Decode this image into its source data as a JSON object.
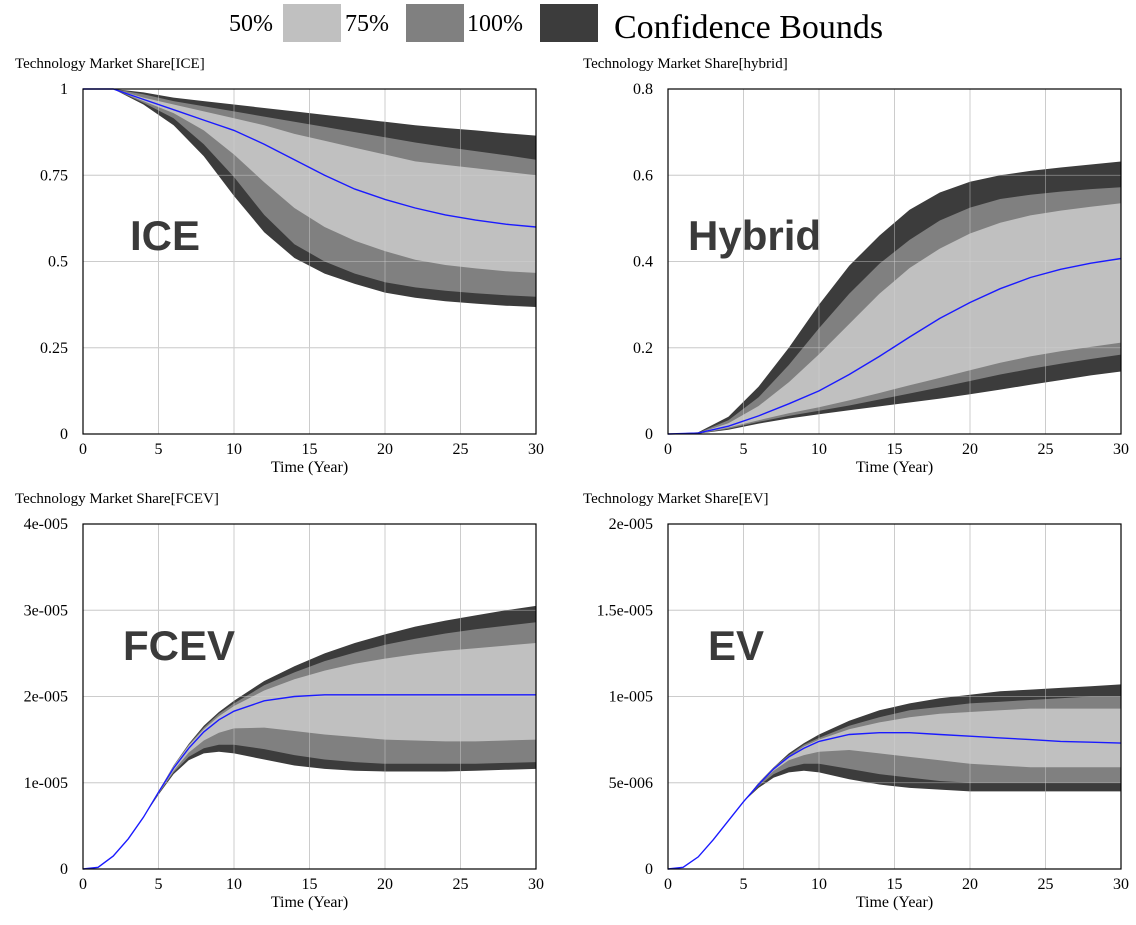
{
  "legend": {
    "title": "Confidence Bounds",
    "items": [
      {
        "label": "50%",
        "color": "#c0c0c0"
      },
      {
        "label": "75%",
        "color": "#808080"
      },
      {
        "label": "100%",
        "color": "#3c3c3c"
      }
    ],
    "median_color": "#1a1aff"
  },
  "chart_data": [
    {
      "type": "area",
      "title": "Technology Market Share[ICE]",
      "annotation": "ICE",
      "xlabel": "Time (Year)",
      "xlim": [
        0,
        30
      ],
      "ylim": [
        0,
        1
      ],
      "x_ticks": [
        "0",
        "5",
        "10",
        "15",
        "20",
        "25",
        "30"
      ],
      "y_ticks": [
        "0",
        "0.25",
        "0.5",
        "0.75",
        "1"
      ],
      "x": [
        0,
        2,
        4,
        6,
        8,
        10,
        12,
        14,
        16,
        18,
        20,
        22,
        24,
        26,
        28,
        30
      ],
      "bands": {
        "b100_upper": [
          1,
          1,
          0.99,
          0.975,
          0.965,
          0.955,
          0.945,
          0.935,
          0.925,
          0.915,
          0.905,
          0.895,
          0.887,
          0.88,
          0.872,
          0.865
        ],
        "b75_upper": [
          1,
          1,
          0.985,
          0.965,
          0.95,
          0.935,
          0.92,
          0.905,
          0.89,
          0.875,
          0.86,
          0.845,
          0.832,
          0.82,
          0.808,
          0.795
        ],
        "b50_upper": [
          1,
          1,
          0.975,
          0.955,
          0.935,
          0.915,
          0.895,
          0.87,
          0.85,
          0.83,
          0.81,
          0.79,
          0.78,
          0.77,
          0.76,
          0.75
        ],
        "median": [
          1,
          1,
          0.97,
          0.94,
          0.91,
          0.88,
          0.84,
          0.795,
          0.75,
          0.71,
          0.68,
          0.655,
          0.635,
          0.62,
          0.608,
          0.6
        ],
        "b50_lower": [
          1,
          1,
          0.965,
          0.93,
          0.88,
          0.81,
          0.73,
          0.655,
          0.6,
          0.56,
          0.53,
          0.505,
          0.49,
          0.48,
          0.472,
          0.467
        ],
        "b75_lower": [
          1,
          1,
          0.96,
          0.915,
          0.84,
          0.745,
          0.635,
          0.55,
          0.5,
          0.465,
          0.44,
          0.425,
          0.415,
          0.408,
          0.402,
          0.398
        ],
        "b100_lower": [
          1,
          1,
          0.955,
          0.895,
          0.805,
          0.69,
          0.585,
          0.51,
          0.465,
          0.435,
          0.41,
          0.395,
          0.385,
          0.378,
          0.372,
          0.368
        ]
      }
    },
    {
      "type": "area",
      "title": "Technology Market Share[hybrid]",
      "annotation": "Hybrid",
      "xlabel": "Time (Year)",
      "xlim": [
        0,
        30
      ],
      "ylim": [
        0,
        0.8
      ],
      "x_ticks": [
        "0",
        "5",
        "10",
        "15",
        "20",
        "25",
        "30"
      ],
      "y_ticks": [
        "0",
        "0.2",
        "0.4",
        "0.6",
        "0.8"
      ],
      "x": [
        0,
        2,
        4,
        6,
        8,
        10,
        12,
        14,
        16,
        18,
        20,
        22,
        24,
        26,
        28,
        30
      ],
      "bands": {
        "b100_upper": [
          0,
          0.004,
          0.04,
          0.11,
          0.2,
          0.3,
          0.39,
          0.46,
          0.52,
          0.56,
          0.585,
          0.6,
          0.61,
          0.618,
          0.625,
          0.632
        ],
        "b75_upper": [
          0,
          0.003,
          0.032,
          0.085,
          0.16,
          0.245,
          0.325,
          0.395,
          0.45,
          0.495,
          0.525,
          0.545,
          0.555,
          0.562,
          0.568,
          0.572
        ],
        "b50_upper": [
          0,
          0.002,
          0.025,
          0.065,
          0.12,
          0.185,
          0.255,
          0.325,
          0.385,
          0.43,
          0.465,
          0.49,
          0.507,
          0.518,
          0.527,
          0.535
        ],
        "median": [
          0,
          0.002,
          0.018,
          0.042,
          0.07,
          0.1,
          0.138,
          0.18,
          0.225,
          0.268,
          0.305,
          0.337,
          0.363,
          0.382,
          0.396,
          0.407
        ],
        "b50_lower": [
          0,
          0.001,
          0.015,
          0.032,
          0.048,
          0.062,
          0.078,
          0.095,
          0.113,
          0.13,
          0.148,
          0.165,
          0.18,
          0.192,
          0.202,
          0.212
        ],
        "b75_lower": [
          0,
          0.001,
          0.012,
          0.028,
          0.042,
          0.054,
          0.066,
          0.08,
          0.094,
          0.108,
          0.123,
          0.138,
          0.151,
          0.163,
          0.174,
          0.184
        ],
        "b100_lower": [
          0,
          0.001,
          0.01,
          0.024,
          0.036,
          0.046,
          0.055,
          0.064,
          0.073,
          0.082,
          0.092,
          0.103,
          0.114,
          0.125,
          0.136,
          0.145
        ]
      }
    },
    {
      "type": "area",
      "title": "Technology Market Share[FCEV]",
      "annotation": "FCEV",
      "xlabel": "Time (Year)",
      "xlim": [
        0,
        30
      ],
      "ylim": [
        0,
        4e-05
      ],
      "x_ticks": [
        "0",
        "5",
        "10",
        "15",
        "20",
        "25",
        "30"
      ],
      "y_ticks": [
        "0",
        "1e-005",
        "2e-005",
        "3e-005",
        "4e-005"
      ],
      "x": [
        0,
        1,
        2,
        3,
        4,
        5,
        6,
        7,
        8,
        9,
        10,
        12,
        14,
        16,
        18,
        20,
        22,
        24,
        26,
        28,
        30
      ],
      "bands": {
        "b100_upper": [
          0,
          2e-07,
          1.5e-06,
          3.5e-06,
          6e-06,
          9e-06,
          1.2e-05,
          1.45e-05,
          1.66e-05,
          1.82e-05,
          1.95e-05,
          2.18e-05,
          2.35e-05,
          2.5e-05,
          2.62e-05,
          2.72e-05,
          2.81e-05,
          2.88e-05,
          2.94e-05,
          3e-05,
          3.05e-05
        ],
        "b75_upper": [
          0,
          2e-07,
          1.5e-06,
          3.5e-06,
          6e-06,
          9e-06,
          1.2e-05,
          1.44e-05,
          1.64e-05,
          1.8e-05,
          1.92e-05,
          2.13e-05,
          2.28e-05,
          2.41e-05,
          2.51e-05,
          2.6e-05,
          2.67e-05,
          2.73e-05,
          2.78e-05,
          2.82e-05,
          2.86e-05
        ],
        "b50_upper": [
          0,
          2e-07,
          1.5e-06,
          3.5e-06,
          6e-06,
          9e-06,
          1.19e-05,
          1.43e-05,
          1.62e-05,
          1.77e-05,
          1.89e-05,
          2.07e-05,
          2.2e-05,
          2.3e-05,
          2.38e-05,
          2.44e-05,
          2.49e-05,
          2.53e-05,
          2.56e-05,
          2.59e-05,
          2.62e-05
        ],
        "median": [
          0,
          2e-07,
          1.5e-06,
          3.5e-06,
          6e-06,
          8.9e-06,
          1.17e-05,
          1.4e-05,
          1.59e-05,
          1.73e-05,
          1.83e-05,
          1.95e-05,
          2e-05,
          2.02e-05,
          2.02e-05,
          2.02e-05,
          2.02e-05,
          2.02e-05,
          2.02e-05,
          2.02e-05,
          2.02e-05
        ],
        "b50_lower": [
          0,
          2e-07,
          1.5e-06,
          3.5e-06,
          6e-06,
          8.8e-06,
          1.14e-05,
          1.35e-05,
          1.49e-05,
          1.58e-05,
          1.63e-05,
          1.64e-05,
          1.6e-05,
          1.56e-05,
          1.53e-05,
          1.5e-05,
          1.49e-05,
          1.48e-05,
          1.48e-05,
          1.49e-05,
          1.5e-05
        ],
        "b75_lower": [
          0,
          2e-07,
          1.5e-06,
          3.5e-06,
          6e-06,
          8.7e-06,
          1.12e-05,
          1.3e-05,
          1.4e-05,
          1.44e-05,
          1.44e-05,
          1.39e-05,
          1.32e-05,
          1.27e-05,
          1.24e-05,
          1.22e-05,
          1.22e-05,
          1.22e-05,
          1.22e-05,
          1.23e-05,
          1.24e-05
        ],
        "b100_lower": [
          0,
          2e-07,
          1.5e-06,
          3.5e-06,
          6e-06,
          8.6e-06,
          1.1e-05,
          1.26e-05,
          1.34e-05,
          1.36e-05,
          1.34e-05,
          1.27e-05,
          1.2e-05,
          1.16e-05,
          1.14e-05,
          1.13e-05,
          1.13e-05,
          1.13e-05,
          1.14e-05,
          1.15e-05,
          1.16e-05
        ]
      }
    },
    {
      "type": "area",
      "title": "Technology Market Share[EV]",
      "annotation": "EV",
      "xlabel": "Time (Year)",
      "xlim": [
        0,
        30
      ],
      "ylim": [
        0,
        2e-05
      ],
      "x_ticks": [
        "0",
        "5",
        "10",
        "15",
        "20",
        "25",
        "30"
      ],
      "y_ticks": [
        "0",
        "5e-006",
        "1e-005",
        "1.5e-005",
        "2e-005"
      ],
      "x": [
        0,
        1,
        2,
        3,
        4,
        5,
        6,
        7,
        8,
        9,
        10,
        12,
        14,
        16,
        18,
        20,
        22,
        24,
        26,
        28,
        30
      ],
      "bands": {
        "b100_upper": [
          0,
          1e-07,
          7e-07,
          1.7e-06,
          2.8e-06,
          3.9e-06,
          5e-06,
          5.9e-06,
          6.7e-06,
          7.3e-06,
          7.8e-06,
          8.6e-06,
          9.2e-06,
          9.6e-06,
          9.9e-06,
          1.01e-05,
          1.03e-05,
          1.04e-05,
          1.05e-05,
          1.06e-05,
          1.07e-05
        ],
        "b75_upper": [
          0,
          1e-07,
          7e-07,
          1.7e-06,
          2.8e-06,
          3.9e-06,
          5e-06,
          5.9e-06,
          6.6e-06,
          7.2e-06,
          7.6e-06,
          8.3e-06,
          8.8e-06,
          9.2e-06,
          9.4e-06,
          9.6e-06,
          9.7e-06,
          9.8e-06,
          9.9e-06,
          1e-05,
          1e-05
        ],
        "b50_upper": [
          0,
          1e-07,
          7e-07,
          1.7e-06,
          2.8e-06,
          3.9e-06,
          4.9e-06,
          5.8e-06,
          6.5e-06,
          7.1e-06,
          7.5e-06,
          8.1e-06,
          8.5e-06,
          8.8e-06,
          9e-06,
          9.1e-06,
          9.2e-06,
          9.3e-06,
          9.3e-06,
          9.3e-06,
          9.3e-06
        ],
        "median": [
          0,
          1e-07,
          7e-07,
          1.7e-06,
          2.8e-06,
          3.9e-06,
          4.9e-06,
          5.8e-06,
          6.5e-06,
          7e-06,
          7.4e-06,
          7.8e-06,
          7.9e-06,
          7.9e-06,
          7.8e-06,
          7.7e-06,
          7.6e-06,
          7.5e-06,
          7.4e-06,
          7.35e-06,
          7.3e-06
        ],
        "b50_lower": [
          0,
          1e-07,
          7e-07,
          1.7e-06,
          2.8e-06,
          3.9e-06,
          4.9e-06,
          5.7e-06,
          6.3e-06,
          6.6e-06,
          6.8e-06,
          6.9e-06,
          6.7e-06,
          6.5e-06,
          6.3e-06,
          6.1e-06,
          6e-06,
          5.9e-06,
          5.9e-06,
          5.9e-06,
          5.9e-06
        ],
        "b75_lower": [
          0,
          1e-07,
          7e-07,
          1.7e-06,
          2.8e-06,
          3.9e-06,
          4.8e-06,
          5.5e-06,
          5.9e-06,
          6.1e-06,
          6.1e-06,
          5.8e-06,
          5.5e-06,
          5.3e-06,
          5.1e-06,
          5e-06,
          5e-06,
          5e-06,
          5e-06,
          5e-06,
          5e-06
        ],
        "b100_lower": [
          0,
          1e-07,
          7e-07,
          1.7e-06,
          2.8e-06,
          3.9e-06,
          4.7e-06,
          5.3e-06,
          5.6e-06,
          5.7e-06,
          5.6e-06,
          5.2e-06,
          4.9e-06,
          4.7e-06,
          4.6e-06,
          4.5e-06,
          4.5e-06,
          4.5e-06,
          4.5e-06,
          4.5e-06,
          4.5e-06
        ]
      }
    }
  ]
}
